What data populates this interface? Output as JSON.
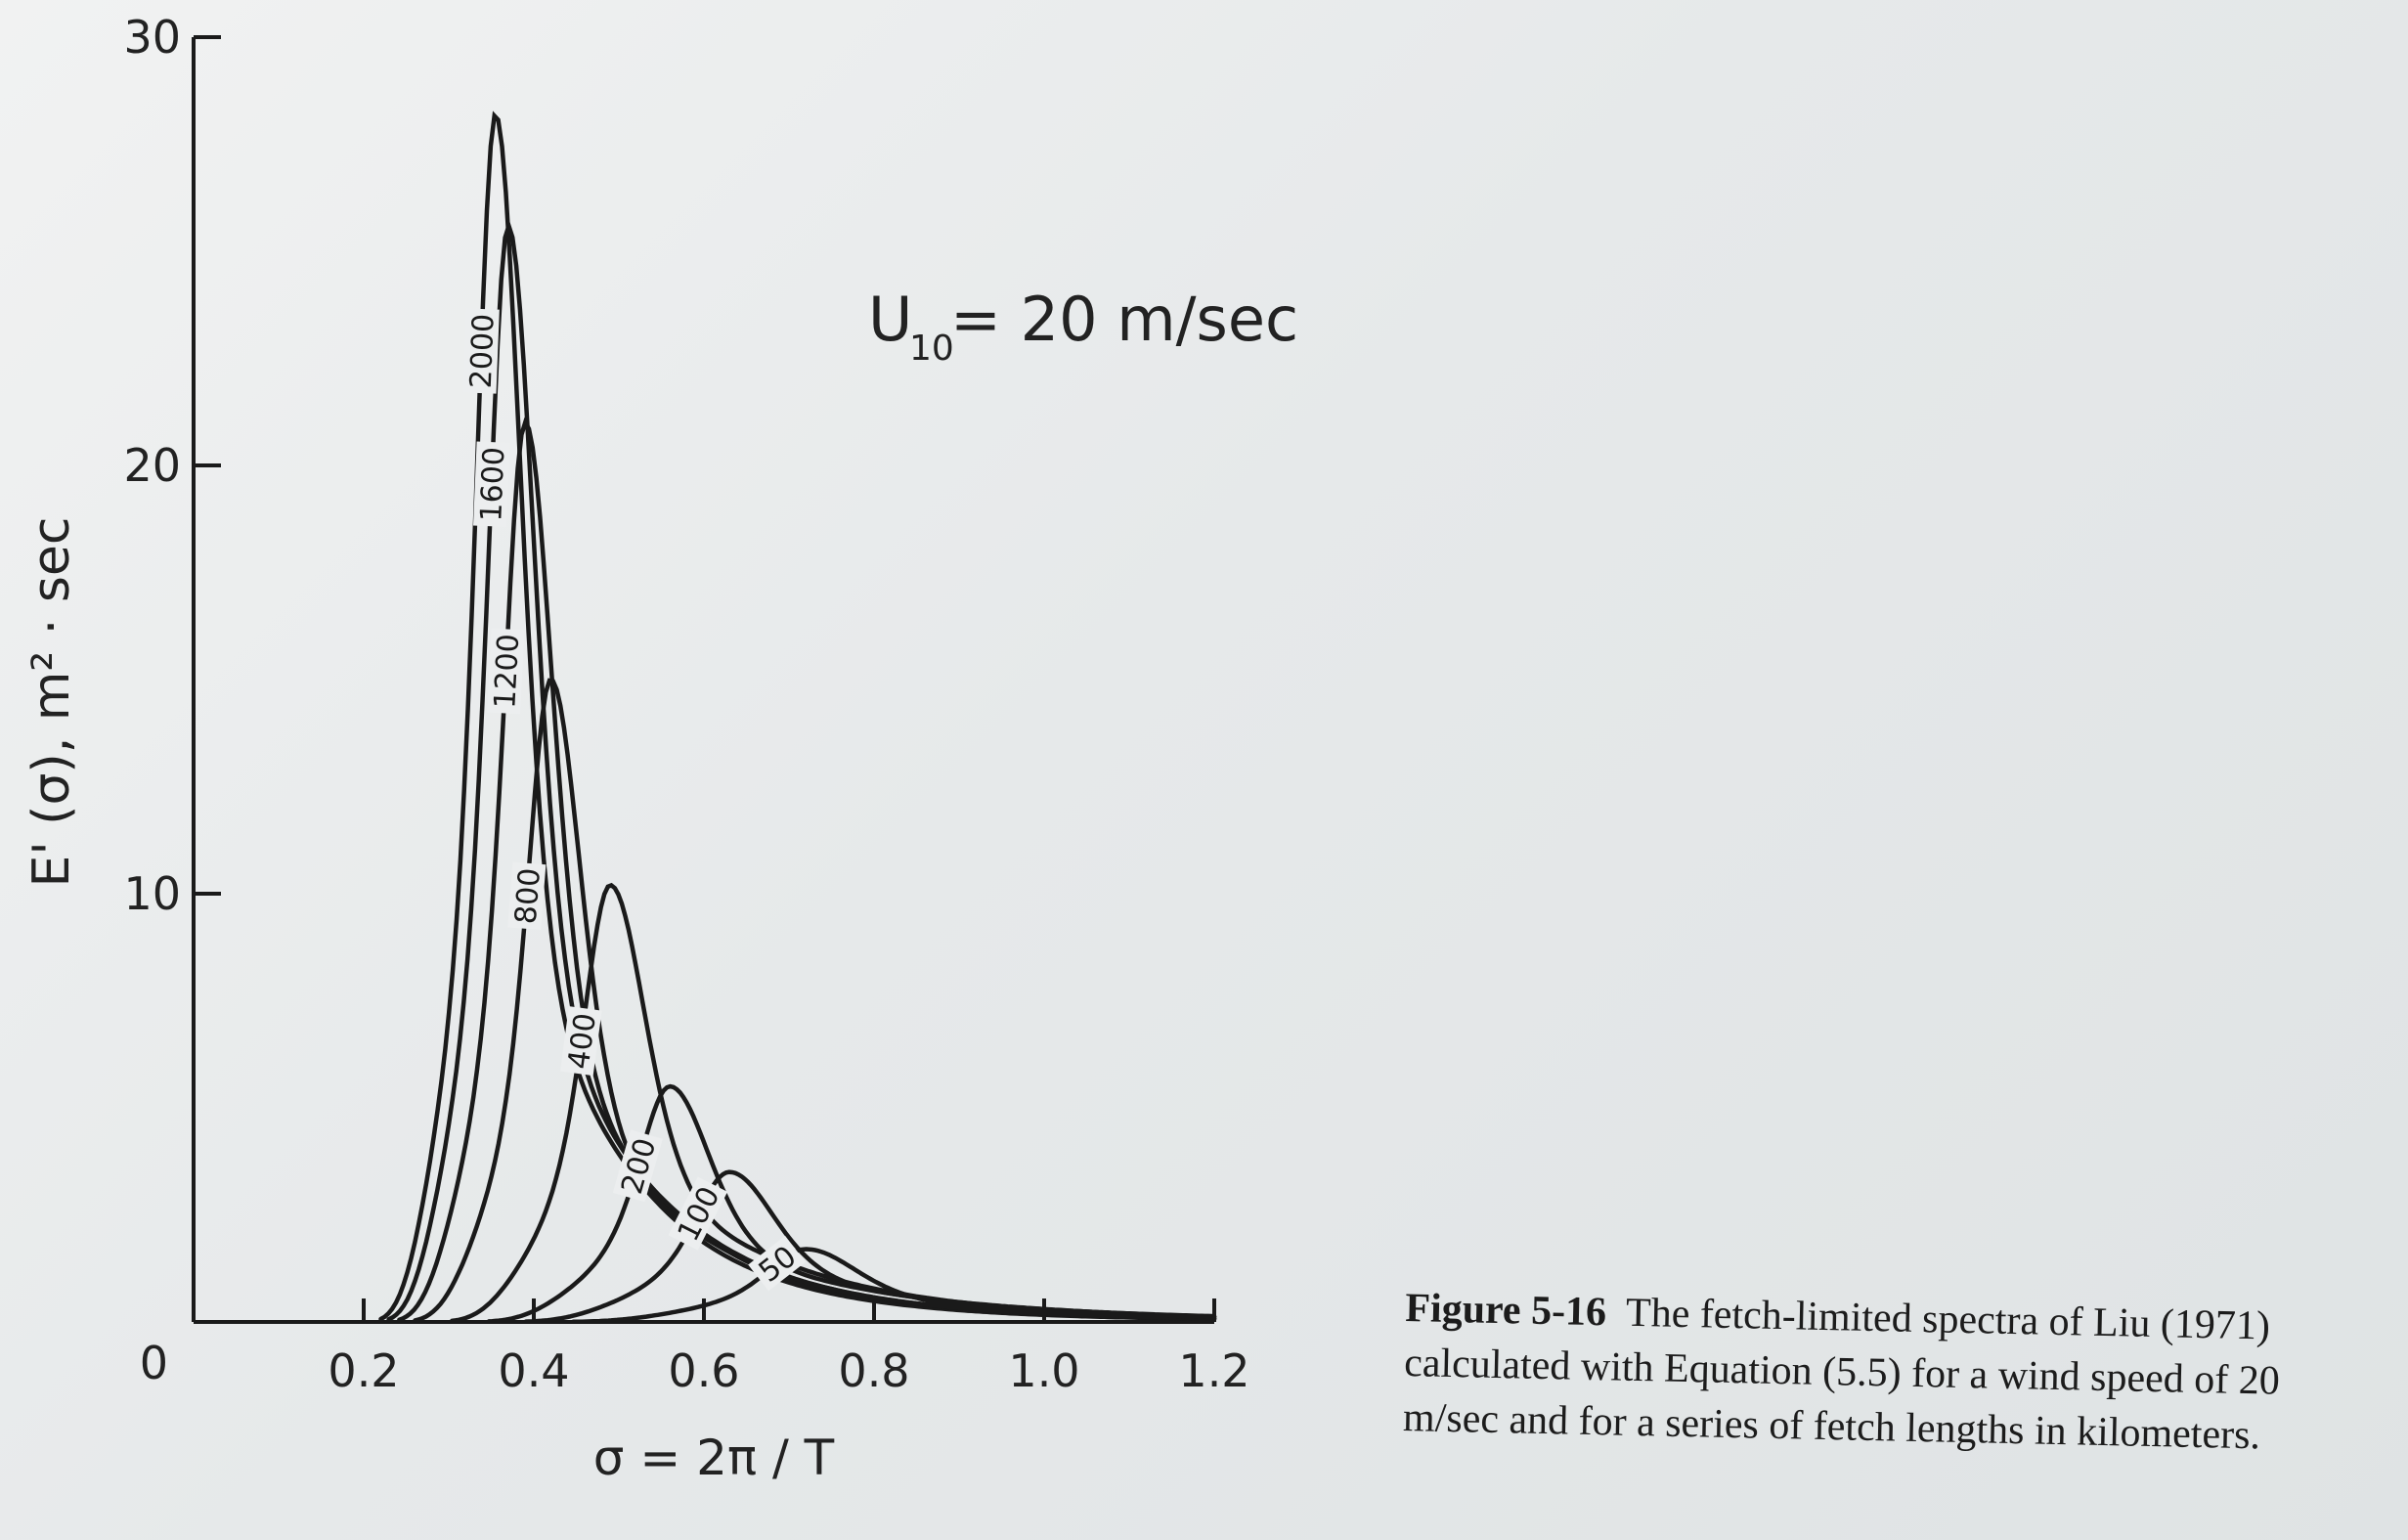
{
  "chart_data": {
    "type": "line",
    "title": "",
    "annotation": {
      "main": "U",
      "sub": "10",
      "rest": " = 20 m/sec"
    },
    "ylabel": "E' (σ),  m² · sec",
    "xlabel": "σ = 2π / T",
    "xlim": [
      0,
      1.2
    ],
    "ylim": [
      0,
      30
    ],
    "x_ticks": [
      "0.2",
      "0.4",
      "0.6",
      "0.8",
      "1.0",
      "1.2"
    ],
    "y_ticks": [
      "0",
      "10",
      "20",
      "30"
    ],
    "grid": false,
    "series": [
      {
        "name": "2000",
        "peak_sigma": 0.355,
        "peak_e": 28.2
      },
      {
        "name": "1600",
        "peak_sigma": 0.37,
        "peak_e": 25.6
      },
      {
        "name": "1200",
        "peak_sigma": 0.39,
        "peak_e": 21.0
      },
      {
        "name": "800",
        "peak_sigma": 0.42,
        "peak_e": 15.0
      },
      {
        "name": "400",
        "peak_sigma": 0.49,
        "peak_e": 10.2
      },
      {
        "name": "200",
        "peak_sigma": 0.56,
        "peak_e": 5.5
      },
      {
        "name": "100",
        "peak_sigma": 0.63,
        "peak_e": 3.5
      },
      {
        "name": "50",
        "peak_sigma": 0.72,
        "peak_e": 1.7
      }
    ]
  },
  "caption": {
    "label": "Figure 5-16",
    "text": "The fetch-limited spectra of Liu (1971) calculated with Equation (5.5) for a wind speed of 20 m/sec and for a series of fetch lengths in kilometers."
  }
}
